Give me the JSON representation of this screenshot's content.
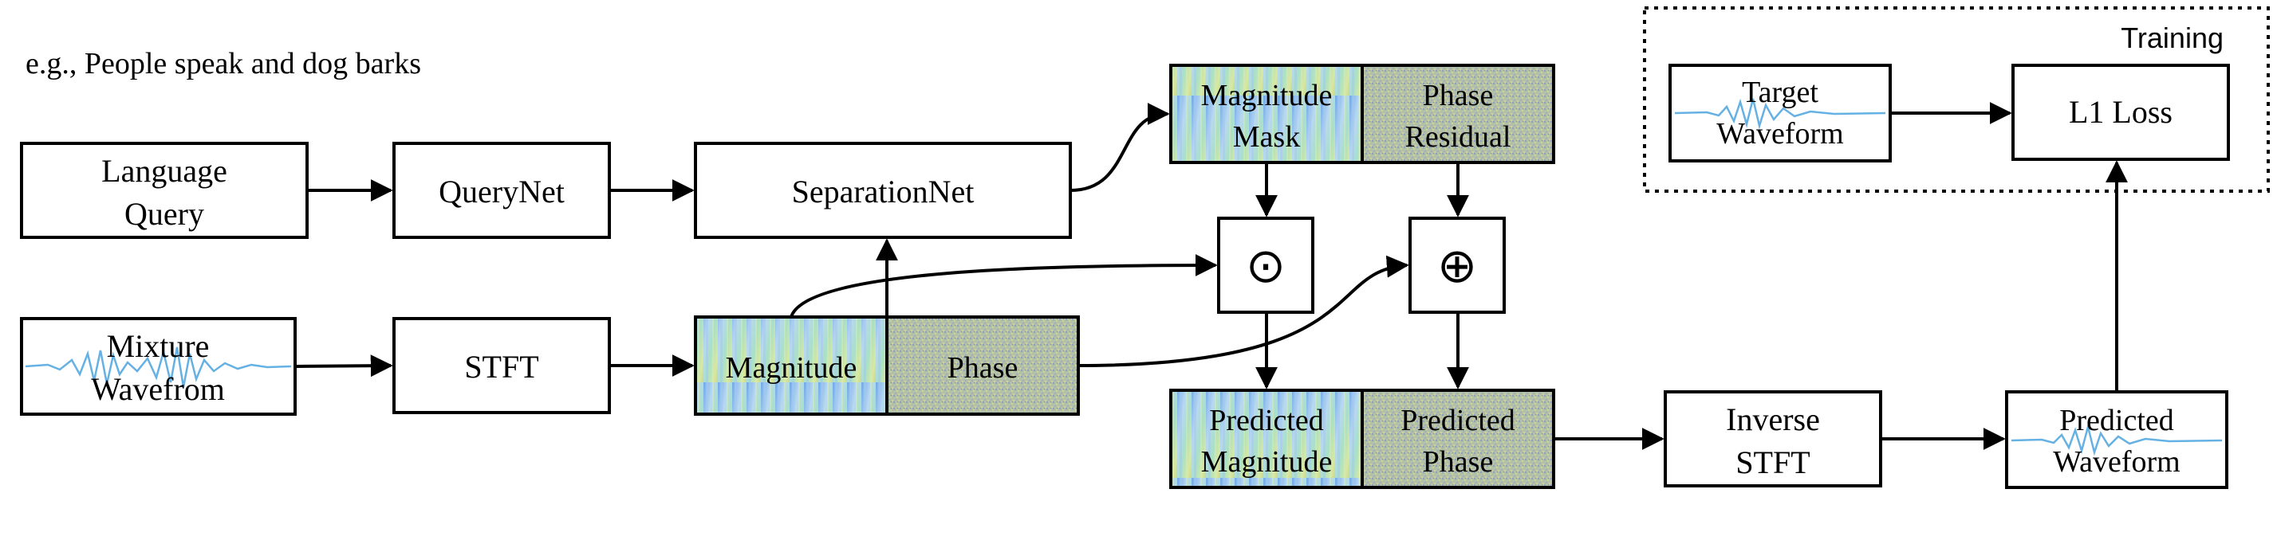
{
  "example_text": "e.g., People speak and dog barks",
  "training_label": "Training",
  "blocks": {
    "language_query": [
      "Language",
      "Query"
    ],
    "querynet": "QueryNet",
    "separationnet": "SeparationNet",
    "mixture_waveform": [
      "Mixture",
      "Wavefrom"
    ],
    "stft": "STFT",
    "magnitude": "Magnitude",
    "phase": "Phase",
    "magnitude_mask": [
      "Magnitude",
      "Mask"
    ],
    "phase_residual": [
      "Phase",
      "Residual"
    ],
    "multiply_op": "⊙",
    "add_op": "⊕",
    "predicted_magnitude": [
      "Predicted",
      "Magnitude"
    ],
    "predicted_phase": [
      "Predicted",
      "Phase"
    ],
    "inverse_stft": [
      "Inverse",
      "STFT"
    ],
    "predicted_waveform": [
      "Predicted",
      "Waveform"
    ],
    "target_waveform": [
      "Target",
      "Waveform"
    ],
    "l1_loss": "L1 Loss"
  },
  "colors": {
    "magnitude_fill": "#8fc4e0",
    "phase_fill": "#b8c6b0",
    "waveform": "#4aa3df",
    "stroke": "#000000"
  }
}
